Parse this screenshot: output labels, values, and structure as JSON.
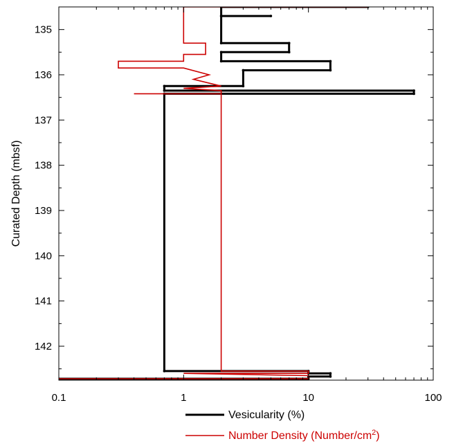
{
  "chart_data": {
    "type": "line",
    "title": "",
    "xlabel": "",
    "ylabel": "Curated Depth (mbsf)",
    "x_scale": "log",
    "xlim": [
      0.1,
      100
    ],
    "ylim": [
      134.5,
      142.75
    ],
    "y_inverted": true,
    "x_ticks": [
      "0.1",
      "1",
      "10",
      "100"
    ],
    "y_ticks": [
      "135",
      "136",
      "137",
      "138",
      "139",
      "140",
      "141",
      "142"
    ],
    "grid": false,
    "legend_position": "bottom-center",
    "series": [
      {
        "name": "Vesicularity (%)",
        "color": "#000000",
        "points": [
          [
            30,
            134.5
          ],
          [
            2,
            134.5
          ],
          [
            2,
            134.7
          ],
          [
            5,
            134.7
          ],
          [
            2,
            134.7
          ],
          [
            2,
            135.3
          ],
          [
            7,
            135.3
          ],
          [
            7,
            135.5
          ],
          [
            2,
            135.5
          ],
          [
            2,
            135.7
          ],
          [
            15,
            135.7
          ],
          [
            15,
            135.9
          ],
          [
            3,
            135.9
          ],
          [
            3,
            136.25
          ],
          [
            0.7,
            136.25
          ],
          [
            0.7,
            136.35
          ],
          [
            70,
            136.35
          ],
          [
            70,
            136.42
          ],
          [
            0.7,
            136.42
          ],
          [
            0.7,
            142.55
          ],
          [
            10,
            142.55
          ],
          [
            10,
            142.6
          ],
          [
            15,
            142.6
          ],
          [
            15,
            142.67
          ],
          [
            10,
            142.67
          ],
          [
            10,
            142.72
          ],
          [
            0.1,
            142.72
          ]
        ]
      },
      {
        "name": "Number Density (Number/cm",
        "name_sup": "2",
        "name_suffix": ")",
        "color": "#cc0000",
        "points": [
          [
            30,
            134.5
          ],
          [
            1,
            134.5
          ],
          [
            1,
            135.3
          ],
          [
            1.5,
            135.3
          ],
          [
            1.5,
            135.55
          ],
          [
            1,
            135.55
          ],
          [
            1,
            135.7
          ],
          [
            0.3,
            135.7
          ],
          [
            0.3,
            135.85
          ],
          [
            1,
            135.85
          ],
          [
            1.6,
            136.0
          ],
          [
            1.2,
            136.1
          ],
          [
            2,
            136.25
          ],
          [
            1,
            136.3
          ],
          [
            2,
            136.35
          ],
          [
            2,
            136.42
          ],
          [
            0.4,
            136.42
          ],
          [
            2,
            136.42
          ],
          [
            2,
            142.55
          ],
          [
            10,
            142.55
          ],
          [
            10,
            142.6
          ],
          [
            1,
            142.6
          ],
          [
            10,
            142.65
          ],
          [
            10,
            142.72
          ],
          [
            0.1,
            142.72
          ]
        ]
      }
    ]
  }
}
